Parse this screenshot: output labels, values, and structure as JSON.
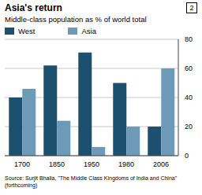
{
  "chart_data": {
    "type": "bar",
    "title": "Asia's return",
    "subtitle": "Middle-class population as % of world total",
    "annotations": [
      "2"
    ],
    "source": "Source: Surjit Bhalla, \"The Middle Class Kingdoms of India and China\" (forthcoming)",
    "categories": [
      "1700",
      "1850",
      "1950",
      "1980",
      "2006"
    ],
    "series": [
      {
        "name": "West",
        "color": "#1d4f6e",
        "values": [
          40,
          62,
          71,
          50,
          20
        ]
      },
      {
        "name": "Asia",
        "color": "#6d9bb7",
        "values": [
          46,
          24,
          6,
          20,
          60
        ]
      }
    ],
    "ylim": [
      0,
      80
    ],
    "yticks": [
      0,
      20,
      40,
      60,
      80
    ],
    "grid": true,
    "legend": "top"
  }
}
